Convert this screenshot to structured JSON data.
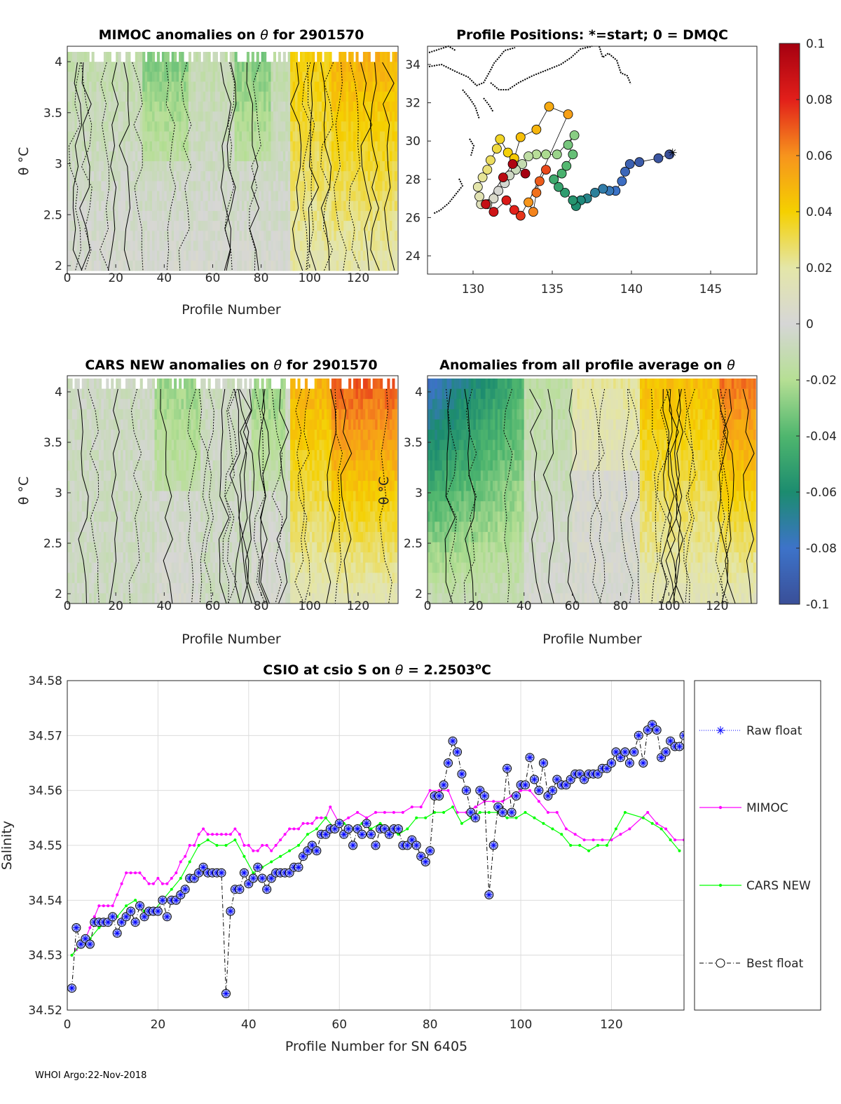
{
  "footer": "WHOI Argo:22-Nov-2018",
  "panels": {
    "mimoc": {
      "title_prefix": "MIMOC anomalies on ",
      "title_suffix": "  for 2901570",
      "xlabel": "Profile Number",
      "ylabel": "θ °C",
      "xticks": [
        0,
        20,
        40,
        60,
        80,
        100,
        120
      ],
      "yticks": [
        2,
        2.5,
        3,
        3.5,
        4
      ]
    },
    "positions": {
      "title": "Profile Positions: *=start; 0 = DMQC",
      "xticks": [
        130,
        135,
        140,
        145
      ],
      "yticks": [
        24,
        26,
        28,
        30,
        32,
        34
      ]
    },
    "cars": {
      "title_prefix": "CARS NEW anomalies on ",
      "title_suffix": " for 2901570",
      "xlabel": "Profile Number",
      "ylabel": "θ °C",
      "xticks": [
        0,
        20,
        40,
        60,
        80,
        100,
        120
      ],
      "yticks": [
        2,
        2.5,
        3,
        3.5,
        4
      ]
    },
    "allavg": {
      "title_prefix": "Anomalies from all profile average on ",
      "xlabel": "Profile Number",
      "ylabel": "θ °C",
      "xticks": [
        0,
        20,
        40,
        60,
        80,
        100,
        120
      ],
      "yticks": [
        2,
        2.5,
        3,
        3.5,
        4
      ]
    },
    "colorbar": {
      "ticks": [
        "0.1",
        "0.08",
        "0.06",
        "0.04",
        "0.02",
        "0",
        "-0.02",
        "-0.04",
        "-0.06",
        "-0.08",
        "-0.1"
      ],
      "colors": [
        "#b30000",
        "#e8421a",
        "#f7941d",
        "#f5d000",
        "#e4e6a8",
        "#d6d6d6",
        "#b6df94",
        "#4fb66e",
        "#1c8c6f",
        "#3d73c9",
        "#3a4f98"
      ]
    }
  },
  "chart_data": {
    "type": "line",
    "title_prefix": "CSIO at csio S on ",
    "title_suffix": " = 2.2503",
    "title_unit": "o",
    "title_end": "C",
    "xlabel": "Profile Number for SN 6405",
    "ylabel": "Salinity",
    "xlim": [
      0,
      136
    ],
    "ylim": [
      34.52,
      34.58
    ],
    "xticks": [
      0,
      20,
      40,
      60,
      80,
      100,
      120
    ],
    "yticks": [
      "34.52",
      "34.53",
      "34.54",
      "34.55",
      "34.56",
      "34.57",
      "34.58"
    ],
    "grid": true,
    "legend_position": "outside-right",
    "series": [
      {
        "name": "Raw float",
        "color": "#0000ff",
        "style": "dotted, asterisk markers",
        "values": "same as Best float"
      },
      {
        "name": "MIMOC",
        "color": "#ff00ff",
        "style": "solid, dot markers",
        "x": [
          1,
          2,
          3,
          4,
          5,
          6,
          7,
          8,
          9,
          10,
          11,
          12,
          13,
          14,
          15,
          16,
          17,
          18,
          19,
          20,
          21,
          22,
          23,
          24,
          25,
          26,
          27,
          28,
          29,
          30,
          31,
          32,
          33,
          34,
          35,
          36,
          37,
          38,
          39,
          40,
          41,
          42,
          43,
          44,
          45,
          46,
          47,
          48,
          49,
          50,
          51,
          52,
          53,
          54,
          55,
          56,
          57,
          58,
          60,
          62,
          64,
          66,
          68,
          70,
          72,
          74,
          76,
          78,
          80,
          82,
          84,
          86,
          88,
          90,
          92,
          94,
          96,
          98,
          100,
          102,
          104,
          106,
          108,
          110,
          112,
          114,
          116,
          118,
          120,
          122,
          124,
          128,
          130,
          132,
          134,
          136
        ],
        "values": [
          34.53,
          34.531,
          34.532,
          34.533,
          34.535,
          34.537,
          34.539,
          34.539,
          34.539,
          34.539,
          34.541,
          34.543,
          34.545,
          34.545,
          34.545,
          34.545,
          34.544,
          34.543,
          34.543,
          34.544,
          34.543,
          34.543,
          34.544,
          34.545,
          34.547,
          34.548,
          34.55,
          34.55,
          34.552,
          34.553,
          34.552,
          34.552,
          34.552,
          34.552,
          34.552,
          34.552,
          34.553,
          34.552,
          34.55,
          34.55,
          34.549,
          34.549,
          34.55,
          34.55,
          34.549,
          34.55,
          34.551,
          34.552,
          34.553,
          34.553,
          34.553,
          34.554,
          34.554,
          34.554,
          34.555,
          34.555,
          34.555,
          34.557,
          34.554,
          34.555,
          34.556,
          34.555,
          34.556,
          34.556,
          34.556,
          34.556,
          34.557,
          34.557,
          34.56,
          34.56,
          34.56,
          34.556,
          34.556,
          34.557,
          34.558,
          34.558,
          34.558,
          34.559,
          34.56,
          34.56,
          34.558,
          34.556,
          34.556,
          34.553,
          34.552,
          34.551,
          34.551,
          34.551,
          34.551,
          34.552,
          34.553,
          34.556,
          34.554,
          34.553,
          34.551,
          34.551
        ]
      },
      {
        "name": "CARS NEW",
        "color": "#00ff00",
        "style": "solid, dot markers",
        "x": [
          1,
          3,
          5,
          7,
          9,
          11,
          13,
          15,
          17,
          19,
          21,
          23,
          25,
          27,
          29,
          31,
          33,
          35,
          37,
          39,
          41,
          43,
          45,
          47,
          49,
          51,
          53,
          55,
          57,
          59,
          61,
          63,
          65,
          67,
          69,
          71,
          73,
          75,
          77,
          79,
          81,
          83,
          85,
          87,
          89,
          91,
          93,
          95,
          97,
          99,
          101,
          103,
          105,
          107,
          109,
          111,
          113,
          115,
          117,
          119,
          121,
          123,
          127,
          129,
          131,
          133,
          135
        ],
        "values": [
          34.53,
          34.532,
          34.533,
          34.535,
          34.536,
          34.537,
          34.539,
          34.54,
          34.538,
          34.538,
          34.54,
          34.542,
          34.544,
          34.547,
          34.55,
          34.551,
          34.55,
          34.55,
          34.551,
          34.548,
          34.545,
          34.546,
          34.547,
          34.548,
          34.549,
          34.55,
          34.552,
          34.553,
          34.555,
          34.553,
          34.554,
          34.553,
          34.554,
          34.553,
          34.554,
          34.553,
          34.552,
          34.553,
          34.555,
          34.555,
          34.556,
          34.556,
          34.557,
          34.554,
          34.555,
          34.556,
          34.556,
          34.556,
          34.555,
          34.555,
          34.556,
          34.555,
          34.554,
          34.553,
          34.552,
          34.55,
          34.55,
          34.549,
          34.55,
          34.55,
          34.553,
          34.556,
          34.555,
          34.554,
          34.553,
          34.551,
          34.549
        ]
      },
      {
        "name": "Best float",
        "color": "#000000",
        "style": "dash-dot, circle markers",
        "x": [
          1,
          2,
          3,
          4,
          5,
          6,
          7,
          8,
          9,
          10,
          11,
          12,
          13,
          14,
          15,
          16,
          17,
          18,
          19,
          20,
          21,
          22,
          23,
          24,
          25,
          26,
          27,
          28,
          29,
          30,
          31,
          32,
          33,
          34,
          35,
          36,
          37,
          38,
          39,
          40,
          41,
          42,
          43,
          44,
          45,
          46,
          47,
          48,
          49,
          50,
          51,
          52,
          53,
          54,
          55,
          56,
          57,
          58,
          59,
          60,
          61,
          62,
          63,
          64,
          65,
          66,
          67,
          68,
          69,
          70,
          71,
          72,
          73,
          74,
          75,
          76,
          77,
          78,
          79,
          80,
          81,
          82,
          83,
          84,
          85,
          86,
          87,
          88,
          89,
          90,
          91,
          92,
          93,
          94,
          95,
          96,
          97,
          98,
          99,
          100,
          101,
          102,
          103,
          104,
          105,
          106,
          107,
          108,
          109,
          110,
          111,
          112,
          113,
          114,
          115,
          116,
          117,
          118,
          119,
          120,
          121,
          122,
          123,
          124,
          125,
          126,
          127,
          128,
          129,
          130,
          131,
          132,
          133,
          134,
          135,
          136
        ],
        "values": [
          34.524,
          34.535,
          34.532,
          34.533,
          34.532,
          34.536,
          34.536,
          34.536,
          34.536,
          34.537,
          34.534,
          34.536,
          34.537,
          34.538,
          34.536,
          34.539,
          34.537,
          34.538,
          34.538,
          34.538,
          34.54,
          34.537,
          34.54,
          34.54,
          34.541,
          34.542,
          34.544,
          34.544,
          34.545,
          34.546,
          34.545,
          34.545,
          34.545,
          34.545,
          34.523,
          34.538,
          34.542,
          34.542,
          34.545,
          34.543,
          34.544,
          34.546,
          34.544,
          34.542,
          34.544,
          34.545,
          34.545,
          34.545,
          34.545,
          34.546,
          34.546,
          34.548,
          34.549,
          34.55,
          34.549,
          34.552,
          34.552,
          34.553,
          34.553,
          34.554,
          34.552,
          34.553,
          34.55,
          34.553,
          34.552,
          34.554,
          34.552,
          34.55,
          34.553,
          34.553,
          34.552,
          34.553,
          34.553,
          34.55,
          34.55,
          34.551,
          34.55,
          34.548,
          34.547,
          34.549,
          34.559,
          34.559,
          34.561,
          34.565,
          34.569,
          34.567,
          34.563,
          34.56,
          34.556,
          34.555,
          34.56,
          34.559,
          34.541,
          34.55,
          34.557,
          34.556,
          34.564,
          34.556,
          34.559,
          34.561,
          34.561,
          34.566,
          34.562,
          34.56,
          34.565,
          34.559,
          34.56,
          34.562,
          34.561,
          34.561,
          34.562,
          34.563,
          34.563,
          34.562,
          34.563,
          34.563,
          34.563,
          34.564,
          34.564,
          34.565,
          34.567,
          34.566,
          34.567,
          34.565,
          34.567,
          34.57,
          34.565,
          34.571,
          34.572,
          34.571,
          34.566,
          34.567,
          34.569,
          34.568,
          34.568,
          34.57
        ]
      }
    ]
  }
}
